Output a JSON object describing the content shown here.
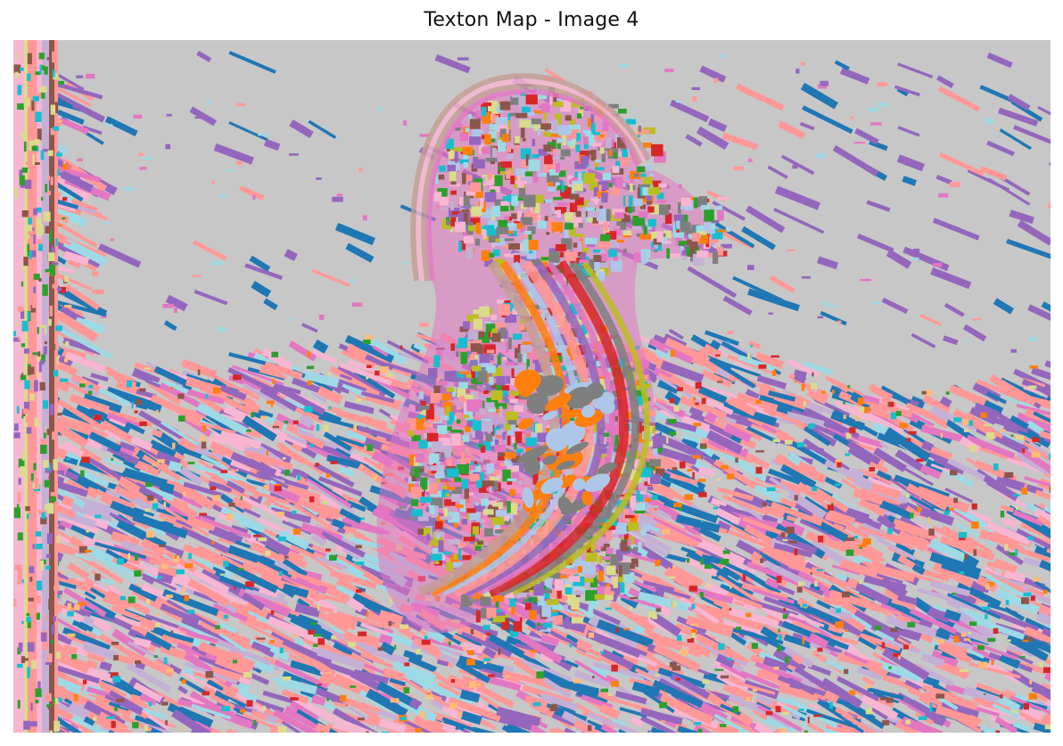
{
  "figure": {
    "title": "Texton Map - Image 4"
  },
  "palette": {
    "background": "#c7c7c7",
    "blue": "#1f77b4",
    "orange": "#ff7f0e",
    "green": "#2ca02c",
    "red": "#d62728",
    "purple": "#9467bd",
    "brown": "#8c564b",
    "pink": "#e377c2",
    "gray": "#7f7f7f",
    "olive": "#bcbd22",
    "cyan": "#17becf",
    "light_blue": "#aec7e8",
    "light_orange": "#ffbb78",
    "light_green": "#98df8a",
    "salmon": "#ff9896",
    "lavender": "#c5b0d5",
    "tan": "#c49c94",
    "light_pink": "#f7b6d2",
    "light_olive": "#dbdb8d",
    "light_cyan": "#9edae5"
  },
  "subject": "duck-on-water"
}
